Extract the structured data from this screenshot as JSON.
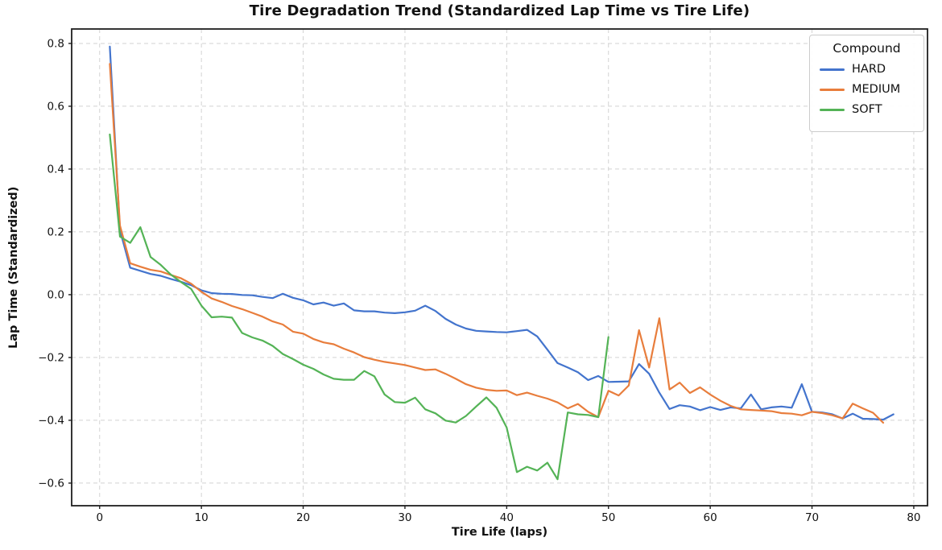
{
  "chart_data": {
    "type": "line",
    "title": "Tire Degradation Trend (Standardized Lap Time vs Tire Life)",
    "xlabel": "Tire Life (laps)",
    "ylabel": "Lap Time (Standardized)",
    "legend_title": "Compound",
    "legend_position": "upper right",
    "grid": true,
    "xlim": [
      -2.75,
      81.35
    ],
    "ylim": [
      -0.672,
      0.846
    ],
    "x_ticks": {
      "values": [
        0,
        10,
        20,
        30,
        40,
        50,
        60,
        70,
        80
      ],
      "labels": [
        "0",
        "10",
        "20",
        "30",
        "40",
        "50",
        "60",
        "70",
        "80"
      ]
    },
    "y_ticks": {
      "values": [
        -0.6,
        -0.4,
        -0.2,
        0.0,
        0.2,
        0.4,
        0.6,
        0.8
      ],
      "labels": [
        "−0.6",
        "−0.4",
        "−0.2",
        "0.0",
        "0.2",
        "0.4",
        "0.6",
        "0.8"
      ]
    },
    "series": [
      {
        "name": "HARD",
        "color": "#4374cd",
        "x": [
          1,
          2,
          3,
          4,
          5,
          6,
          7,
          8,
          9,
          10,
          11,
          12,
          13,
          14,
          15,
          16,
          17,
          18,
          19,
          20,
          21,
          22,
          23,
          24,
          25,
          26,
          27,
          28,
          29,
          30,
          31,
          32,
          33,
          34,
          35,
          36,
          37,
          38,
          39,
          40,
          41,
          42,
          43,
          44,
          45,
          46,
          47,
          48,
          49,
          50,
          51,
          52,
          53,
          54,
          55,
          56,
          57,
          58,
          59,
          60,
          61,
          62,
          63,
          64,
          65,
          66,
          67,
          68,
          69,
          70,
          71,
          72,
          73,
          74,
          75,
          76,
          77,
          78
        ],
        "y": [
          0.79,
          0.205,
          0.086,
          0.076,
          0.066,
          0.06,
          0.05,
          0.041,
          0.03,
          0.014,
          0.005,
          0.003,
          0.002,
          -0.001,
          -0.002,
          -0.007,
          -0.011,
          0.003,
          -0.01,
          -0.018,
          -0.031,
          -0.025,
          -0.035,
          -0.028,
          -0.05,
          -0.053,
          -0.053,
          -0.057,
          -0.059,
          -0.056,
          -0.051,
          -0.035,
          -0.052,
          -0.077,
          -0.095,
          -0.108,
          -0.115,
          -0.117,
          -0.119,
          -0.12,
          -0.116,
          -0.112,
          -0.133,
          -0.175,
          -0.218,
          -0.232,
          -0.247,
          -0.272,
          -0.259,
          -0.278,
          -0.277,
          -0.276,
          -0.221,
          -0.252,
          -0.312,
          -0.364,
          -0.352,
          -0.356,
          -0.368,
          -0.358,
          -0.367,
          -0.359,
          -0.362,
          -0.318,
          -0.365,
          -0.359,
          -0.356,
          -0.36,
          -0.285,
          -0.373,
          -0.375,
          -0.381,
          -0.394,
          -0.379,
          -0.395,
          -0.396,
          -0.398,
          -0.381
        ]
      },
      {
        "name": "MEDIUM",
        "color": "#e87d3c",
        "x": [
          1,
          2,
          3,
          4,
          5,
          6,
          7,
          8,
          9,
          10,
          11,
          12,
          13,
          14,
          15,
          16,
          17,
          18,
          19,
          20,
          21,
          22,
          23,
          24,
          25,
          26,
          27,
          28,
          29,
          30,
          31,
          32,
          33,
          34,
          35,
          36,
          37,
          38,
          39,
          40,
          41,
          42,
          43,
          44,
          45,
          46,
          47,
          48,
          49,
          50,
          51,
          52,
          53,
          54,
          55,
          56,
          57,
          58,
          59,
          60,
          61,
          62,
          63,
          64,
          65,
          66,
          67,
          68,
          69,
          70,
          71,
          72,
          73,
          74,
          75,
          76,
          77
        ],
        "y": [
          0.735,
          0.22,
          0.1,
          0.089,
          0.079,
          0.074,
          0.063,
          0.052,
          0.035,
          0.009,
          -0.012,
          -0.023,
          -0.036,
          -0.046,
          -0.058,
          -0.07,
          -0.085,
          -0.095,
          -0.118,
          -0.124,
          -0.141,
          -0.152,
          -0.158,
          -0.172,
          -0.184,
          -0.199,
          -0.207,
          -0.214,
          -0.219,
          -0.224,
          -0.232,
          -0.24,
          -0.238,
          -0.252,
          -0.268,
          -0.285,
          -0.296,
          -0.303,
          -0.306,
          -0.305,
          -0.32,
          -0.312,
          -0.322,
          -0.331,
          -0.343,
          -0.362,
          -0.348,
          -0.373,
          -0.39,
          -0.306,
          -0.321,
          -0.289,
          -0.113,
          -0.232,
          -0.075,
          -0.302,
          -0.28,
          -0.313,
          -0.295,
          -0.318,
          -0.338,
          -0.354,
          -0.365,
          -0.367,
          -0.369,
          -0.371,
          -0.377,
          -0.379,
          -0.384,
          -0.373,
          -0.377,
          -0.384,
          -0.394,
          -0.347,
          -0.362,
          -0.376,
          -0.408
        ]
      },
      {
        "name": "SOFT",
        "color": "#54b356",
        "x": [
          1,
          2,
          3,
          4,
          5,
          6,
          7,
          8,
          9,
          10,
          11,
          12,
          13,
          14,
          15,
          16,
          17,
          18,
          19,
          20,
          21,
          22,
          23,
          24,
          25,
          26,
          27,
          28,
          29,
          30,
          31,
          32,
          33,
          34,
          35,
          36,
          37,
          38,
          39,
          40,
          41,
          42,
          43,
          44,
          45,
          46,
          47,
          48,
          49,
          50
        ],
        "y": [
          0.51,
          0.185,
          0.165,
          0.215,
          0.12,
          0.095,
          0.064,
          0.04,
          0.018,
          -0.035,
          -0.072,
          -0.07,
          -0.073,
          -0.122,
          -0.136,
          -0.146,
          -0.163,
          -0.189,
          -0.205,
          -0.223,
          -0.236,
          -0.254,
          -0.268,
          -0.271,
          -0.271,
          -0.243,
          -0.26,
          -0.318,
          -0.342,
          -0.344,
          -0.328,
          -0.365,
          -0.378,
          -0.401,
          -0.407,
          -0.386,
          -0.356,
          -0.327,
          -0.36,
          -0.423,
          -0.565,
          -0.548,
          -0.56,
          -0.535,
          -0.588,
          -0.375,
          -0.381,
          -0.383,
          -0.39,
          -0.135
        ]
      }
    ],
    "style": {
      "grid_color": "#d2d2d2",
      "spine_color": "#1f1f1f",
      "tick_label_color": "#111111",
      "background": "#ffffff"
    }
  }
}
